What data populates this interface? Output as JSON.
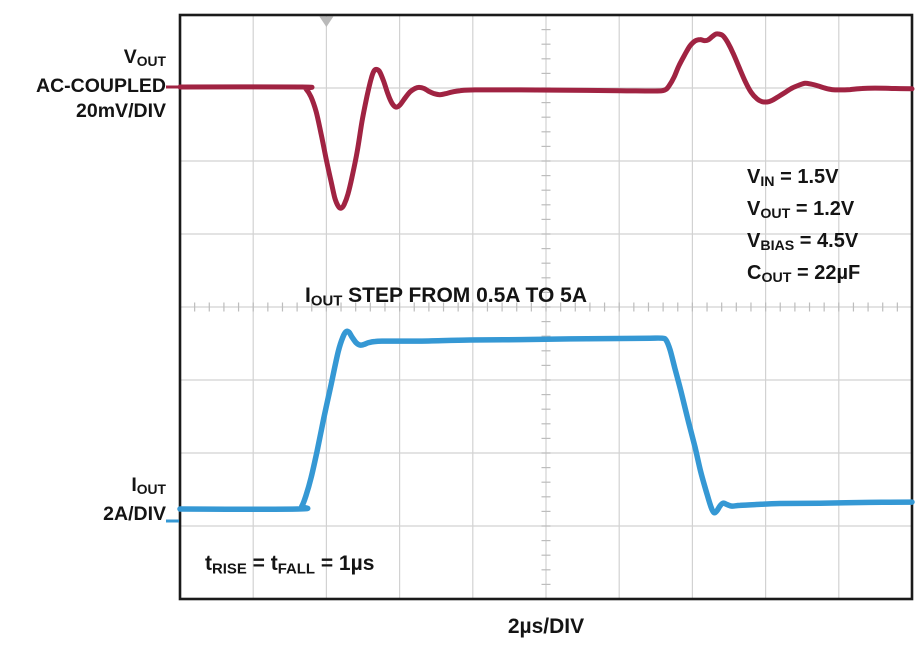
{
  "figure": {
    "colors": {
      "vout_trace": "#a02342",
      "iout_trace": "#3598d4",
      "grid": "#d2d2d2",
      "fine_ticks": "#bdbdbd",
      "border": "#1a1a1a",
      "trigger_marker": "#b9b9b9"
    },
    "vout_label": {
      "main": "V",
      "sub": "OUT",
      "line2": "AC-COUPLED",
      "line3": "20mV/DIV"
    },
    "iout_label": {
      "main": "I",
      "sub": "OUT",
      "line2": "2A/DIV"
    },
    "conditions": [
      {
        "main": "V",
        "sub": "IN",
        "rest": " = 1.5V"
      },
      {
        "main": "V",
        "sub": "OUT",
        "rest": " = 1.2V"
      },
      {
        "main": "V",
        "sub": "BIAS",
        "rest": " = 4.5V"
      },
      {
        "main": "C",
        "sub": "OUT",
        "rest": " = 22µF"
      }
    ],
    "step_label": {
      "main": "I",
      "sub": "OUT",
      "rest": " STEP FROM 0.5A TO 5A"
    },
    "risefall_label": {
      "p1": "t",
      "s1": "RISE",
      "p2": " = t",
      "s2": "FALL",
      "p3": " = 1µs"
    },
    "xaxis_label": "2µs/DIV"
  },
  "chart_data": {
    "type": "line",
    "x_unit": "µs",
    "x_scale": "2µs/DIV",
    "x_range_us": [
      0,
      20
    ],
    "grid_divisions": {
      "x": 10,
      "y": 8
    },
    "legend_position": "traces labeled at left margin",
    "grid": true,
    "event": "IOUT STEP FROM 0.5A TO 5A",
    "timing": "tRISE = tFALL = 1µs",
    "conditions": [
      "VIN = 1.5V",
      "VOUT = 1.2V",
      "VBIAS = 4.5V",
      "COUT = 22µF"
    ],
    "series": [
      {
        "name": "VOUT AC-COUPLED",
        "unit": "mV",
        "scale": "20mV/DIV",
        "color": "#a02342",
        "points": [
          [
            0,
            0
          ],
          [
            3.33,
            0
          ],
          [
            3.44,
            -0.5
          ],
          [
            3.58,
            -2.7
          ],
          [
            3.72,
            -6.8
          ],
          [
            3.85,
            -12.6
          ],
          [
            3.99,
            -19.5
          ],
          [
            4.13,
            -26
          ],
          [
            4.23,
            -30.4
          ],
          [
            4.32,
            -32.6
          ],
          [
            4.4,
            -33.2
          ],
          [
            4.48,
            -32.3
          ],
          [
            4.59,
            -29.3
          ],
          [
            4.7,
            -24.7
          ],
          [
            4.84,
            -17.8
          ],
          [
            4.97,
            -9.6
          ],
          [
            5.11,
            -2.5
          ],
          [
            5.22,
            2.2
          ],
          [
            5.3,
            4.4
          ],
          [
            5.38,
            4.8
          ],
          [
            5.46,
            4.1
          ],
          [
            5.57,
            1.4
          ],
          [
            5.68,
            -1.9
          ],
          [
            5.79,
            -4.4
          ],
          [
            5.9,
            -5.5
          ],
          [
            6.01,
            -4.9
          ],
          [
            6.15,
            -3
          ],
          [
            6.28,
            -1.4
          ],
          [
            6.42,
            -0.4
          ],
          [
            6.53,
            -0.1
          ],
          [
            6.67,
            -0.4
          ],
          [
            6.8,
            -1.2
          ],
          [
            6.94,
            -1.8
          ],
          [
            7.1,
            -2.1
          ],
          [
            7.27,
            -1.8
          ],
          [
            7.43,
            -1.4
          ],
          [
            7.65,
            -1
          ],
          [
            8.06,
            -0.8
          ],
          [
            9.29,
            -0.8
          ],
          [
            10.66,
            -0.9
          ],
          [
            12.02,
            -1
          ],
          [
            12.98,
            -1.1
          ],
          [
            13.25,
            -0.8
          ],
          [
            13.36,
            0.3
          ],
          [
            13.5,
            2.7
          ],
          [
            13.63,
            5.8
          ],
          [
            13.8,
            9
          ],
          [
            13.93,
            11.2
          ],
          [
            14.07,
            12.6
          ],
          [
            14.21,
            13
          ],
          [
            14.32,
            12.7
          ],
          [
            14.43,
            12.9
          ],
          [
            14.54,
            13.8
          ],
          [
            14.64,
            14.5
          ],
          [
            14.73,
            14.5
          ],
          [
            14.84,
            14
          ],
          [
            14.97,
            12.1
          ],
          [
            15.11,
            9.3
          ],
          [
            15.27,
            5.5
          ],
          [
            15.44,
            1.6
          ],
          [
            15.6,
            -1.4
          ],
          [
            15.77,
            -3.3
          ],
          [
            15.9,
            -4
          ],
          [
            16.04,
            -4.1
          ],
          [
            16.17,
            -3.7
          ],
          [
            16.34,
            -2.7
          ],
          [
            16.53,
            -1.5
          ],
          [
            16.72,
            -0.3
          ],
          [
            16.91,
            0.5
          ],
          [
            17.08,
            1
          ],
          [
            17.24,
            0.8
          ],
          [
            17.43,
            0.3
          ],
          [
            17.62,
            -0.3
          ],
          [
            17.81,
            -0.7
          ],
          [
            18.03,
            -0.8
          ],
          [
            18.31,
            -0.7
          ],
          [
            18.63,
            -0.4
          ],
          [
            18.99,
            -0.3
          ],
          [
            19.54,
            -0.4
          ],
          [
            20,
            -0.5
          ]
        ]
      },
      {
        "name": "IOUT",
        "unit": "A",
        "scale": "2A/DIV",
        "color": "#3598d4",
        "points": [
          [
            0,
            0.5
          ],
          [
            3.22,
            0.5
          ],
          [
            3.33,
            0.58
          ],
          [
            3.44,
            0.86
          ],
          [
            3.58,
            1.35
          ],
          [
            3.74,
            2.06
          ],
          [
            3.93,
            2.99
          ],
          [
            4.13,
            3.92
          ],
          [
            4.32,
            4.8
          ],
          [
            4.45,
            5.21
          ],
          [
            4.54,
            5.36
          ],
          [
            4.62,
            5.34
          ],
          [
            4.7,
            5.21
          ],
          [
            4.81,
            5.06
          ],
          [
            4.92,
            4.99
          ],
          [
            5.03,
            5.01
          ],
          [
            5.16,
            5.06
          ],
          [
            5.33,
            5.09
          ],
          [
            5.6,
            5.1
          ],
          [
            6.56,
            5.1
          ],
          [
            7.92,
            5.13
          ],
          [
            9.29,
            5.14
          ],
          [
            10.66,
            5.16
          ],
          [
            12.02,
            5.17
          ],
          [
            12.84,
            5.18
          ],
          [
            13.17,
            5.18
          ],
          [
            13.28,
            5.13
          ],
          [
            13.39,
            4.86
          ],
          [
            13.52,
            4.36
          ],
          [
            13.69,
            3.71
          ],
          [
            13.88,
            2.94
          ],
          [
            14.07,
            2.2
          ],
          [
            14.23,
            1.51
          ],
          [
            14.4,
            0.91
          ],
          [
            14.51,
            0.55
          ],
          [
            14.59,
            0.4
          ],
          [
            14.67,
            0.45
          ],
          [
            14.75,
            0.58
          ],
          [
            14.84,
            0.66
          ],
          [
            14.95,
            0.62
          ],
          [
            15.08,
            0.58
          ],
          [
            15.3,
            0.6
          ],
          [
            15.71,
            0.62
          ],
          [
            16.39,
            0.65
          ],
          [
            17.49,
            0.66
          ],
          [
            18.85,
            0.68
          ],
          [
            20,
            0.69
          ]
        ]
      }
    ]
  }
}
